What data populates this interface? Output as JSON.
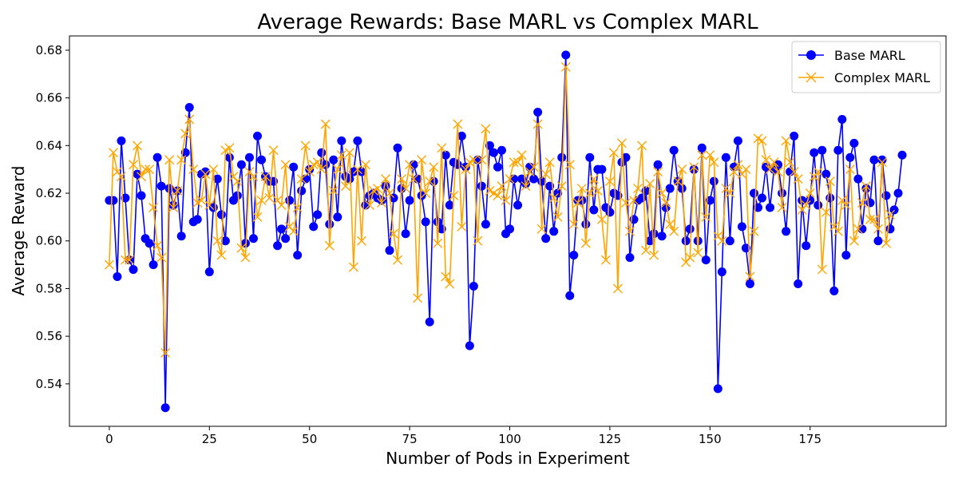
{
  "chart_data": {
    "type": "line",
    "title": "Average Rewards: Base MARL vs Complex MARL",
    "xlabel": "Number of Pods in Experiment",
    "ylabel": "Average Reward",
    "xlim": [
      -9.95,
      208.95
    ],
    "ylim": [
      0.5222,
      0.686
    ],
    "xticks": [
      0,
      25,
      50,
      75,
      100,
      125,
      150,
      175
    ],
    "yticks": [
      0.54,
      0.56,
      0.58,
      0.6,
      0.62,
      0.64,
      0.66,
      0.68
    ],
    "ytick_labels": [
      "0.54",
      "0.56",
      "0.58",
      "0.60",
      "0.62",
      "0.64",
      "0.66",
      "0.68"
    ],
    "grid": false,
    "legend_position": "top-right",
    "series": [
      {
        "name": "Base MARL",
        "color": "#0000ff",
        "marker": "circle",
        "values": [
          0.617,
          0.617,
          0.585,
          0.642,
          0.618,
          0.592,
          0.588,
          0.628,
          0.619,
          0.601,
          0.599,
          0.59,
          0.635,
          0.623,
          0.53,
          0.622,
          0.615,
          0.621,
          0.602,
          0.637,
          0.656,
          0.608,
          0.609,
          0.628,
          0.629,
          0.587,
          0.614,
          0.626,
          0.611,
          0.6,
          0.635,
          0.617,
          0.619,
          0.632,
          0.599,
          0.635,
          0.601,
          0.644,
          0.634,
          0.627,
          0.625,
          0.625,
          0.598,
          0.605,
          0.601,
          0.617,
          0.631,
          0.594,
          0.621,
          0.626,
          0.63,
          0.606,
          0.611,
          0.637,
          0.632,
          0.607,
          0.634,
          0.61,
          0.642,
          0.627,
          0.626,
          0.629,
          0.642,
          0.629,
          0.615,
          0.619,
          0.62,
          0.618,
          0.617,
          0.623,
          0.596,
          0.618,
          0.639,
          0.622,
          0.603,
          0.617,
          0.632,
          0.626,
          0.619,
          0.608,
          0.566,
          0.625,
          0.608,
          0.605,
          0.636,
          0.615,
          0.633,
          0.632,
          0.644,
          0.631,
          0.556,
          0.581,
          0.634,
          0.623,
          0.607,
          0.64,
          0.637,
          0.631,
          0.638,
          0.603,
          0.605,
          0.626,
          0.615,
          0.626,
          0.624,
          0.631,
          0.626,
          0.654,
          0.625,
          0.601,
          0.623,
          0.604,
          0.62,
          0.635,
          0.678,
          0.577,
          0.594,
          0.617,
          0.617,
          0.607,
          0.635,
          0.613,
          0.63,
          0.63,
          0.614,
          0.612,
          0.62,
          0.619,
          0.633,
          0.635,
          0.593,
          0.609,
          0.617,
          0.618,
          0.621,
          0.6,
          0.603,
          0.632,
          0.602,
          0.614,
          0.622,
          0.638,
          0.625,
          0.622,
          0.6,
          0.605,
          0.63,
          0.6,
          0.639,
          0.592,
          0.617,
          0.625,
          0.538,
          0.587,
          0.635,
          0.6,
          0.631,
          0.642,
          0.606,
          0.597,
          0.582,
          0.62,
          0.614,
          0.618,
          0.631,
          0.614,
          0.63,
          0.632,
          0.62,
          0.604,
          0.629,
          0.644,
          0.582,
          0.617,
          0.598,
          0.617,
          0.637,
          0.615,
          0.638,
          0.628,
          0.618,
          0.579,
          0.638,
          0.651,
          0.594,
          0.635,
          0.641,
          0.626,
          0.605,
          0.622,
          0.616,
          0.634,
          0.6,
          0.634,
          0.619,
          0.605,
          0.613,
          0.62,
          0.636
        ]
      },
      {
        "name": "Complex MARL",
        "color": "#ffa500",
        "marker": "x",
        "values": [
          0.59,
          0.637,
          0.629,
          0.627,
          0.592,
          0.592,
          0.632,
          0.64,
          0.627,
          0.63,
          0.63,
          0.614,
          0.598,
          0.593,
          0.553,
          0.634,
          0.614,
          0.621,
          0.634,
          0.645,
          0.651,
          0.63,
          0.616,
          0.617,
          0.628,
          0.615,
          0.63,
          0.6,
          0.594,
          0.638,
          0.639,
          0.627,
          0.625,
          0.597,
          0.593,
          0.629,
          0.627,
          0.61,
          0.617,
          0.627,
          0.618,
          0.638,
          0.617,
          0.615,
          0.632,
          0.606,
          0.604,
          0.614,
          0.626,
          0.64,
          0.629,
          0.632,
          0.633,
          0.63,
          0.649,
          0.598,
          0.621,
          0.63,
          0.636,
          0.623,
          0.637,
          0.589,
          0.63,
          0.6,
          0.632,
          0.615,
          0.621,
          0.622,
          0.616,
          0.626,
          0.62,
          0.603,
          0.592,
          0.626,
          0.622,
          0.632,
          0.626,
          0.576,
          0.634,
          0.62,
          0.625,
          0.631,
          0.599,
          0.639,
          0.585,
          0.582,
          0.619,
          0.649,
          0.606,
          0.63,
          0.633,
          0.634,
          0.6,
          0.634,
          0.647,
          0.621,
          0.62,
          0.619,
          0.623,
          0.617,
          0.626,
          0.633,
          0.633,
          0.636,
          0.623,
          0.629,
          0.631,
          0.649,
          0.605,
          0.628,
          0.633,
          0.618,
          0.61,
          0.623,
          0.673,
          0.632,
          0.607,
          0.616,
          0.622,
          0.599,
          0.62,
          0.626,
          0.621,
          0.609,
          0.592,
          0.625,
          0.637,
          0.58,
          0.641,
          0.616,
          0.604,
          0.617,
          0.622,
          0.64,
          0.596,
          0.624,
          0.594,
          0.629,
          0.62,
          0.616,
          0.607,
          0.604,
          0.625,
          0.63,
          0.591,
          0.593,
          0.631,
          0.595,
          0.636,
          0.61,
          0.636,
          0.633,
          0.602,
          0.6,
          0.622,
          0.62,
          0.629,
          0.632,
          0.628,
          0.63,
          0.585,
          0.604,
          0.643,
          0.642,
          0.634,
          0.63,
          0.633,
          0.629,
          0.614,
          0.642,
          0.633,
          0.629,
          0.626,
          0.613,
          0.615,
          0.62,
          0.627,
          0.629,
          0.588,
          0.612,
          0.625,
          0.606,
          0.604,
          0.617,
          0.615,
          0.63,
          0.6,
          0.605,
          0.616,
          0.623,
          0.609,
          0.609,
          0.605,
          0.633,
          0.599,
          0.611
        ]
      }
    ]
  }
}
